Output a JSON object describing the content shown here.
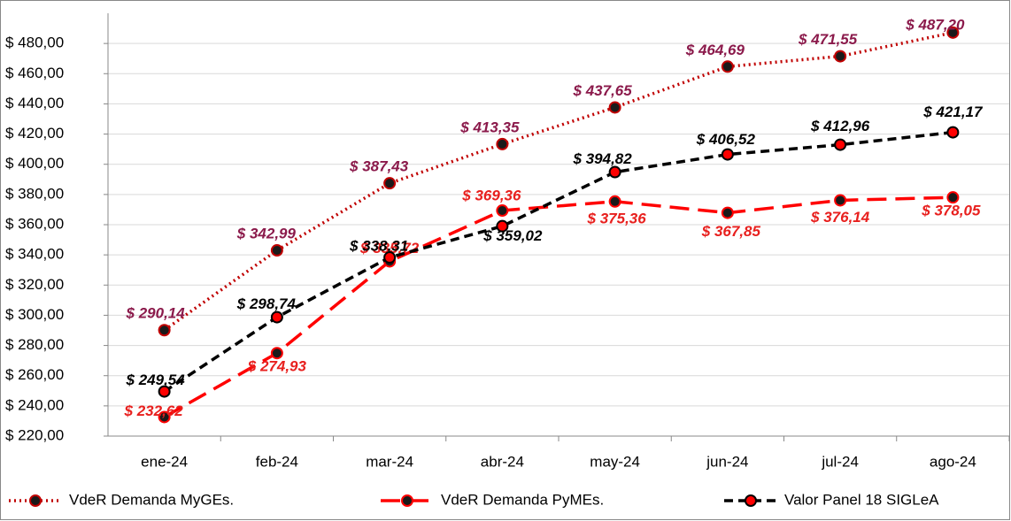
{
  "chart_data": {
    "type": "line",
    "categories": [
      "ene-24",
      "feb-24",
      "mar-24",
      "abr-24",
      "may-24",
      "jun-24",
      "jul-24",
      "ago-24"
    ],
    "series": [
      {
        "name": "VdeR Demanda MyGEs.",
        "color": "#c00000",
        "marker_fill": "#1a1a1a",
        "label_color": "#8b1a4b",
        "dash": "dotted",
        "values": [
          290.14,
          342.99,
          387.43,
          413.35,
          437.65,
          464.69,
          471.55,
          487.2
        ],
        "value_labels": [
          "$ 290,14",
          "$ 342,99",
          "$ 387,43",
          "$ 413,35",
          "$ 437,65",
          "$ 464,69",
          "$ 471,55",
          "$ 487,20"
        ]
      },
      {
        "name": "VdeR Demanda PyMEs.",
        "color": "#ff0000",
        "marker_fill": "#1a1a1a",
        "label_color": "#e8201e",
        "dash": "long",
        "values": [
          232.62,
          274.93,
          335.72,
          369.36,
          375.36,
          367.85,
          376.14,
          378.05
        ],
        "value_labels": [
          "$ 232,62",
          "$ 274,93",
          "$ 335,72",
          "$ 369,36",
          "$ 375,36",
          "$ 367,85",
          "$ 376,14",
          "$ 378,05"
        ]
      },
      {
        "name": "Valor Panel 18 SIGLeA",
        "color": "#000000",
        "marker_fill": "#ff0000",
        "label_color": "#000000",
        "dash": "short",
        "values": [
          249.54,
          298.74,
          338.31,
          359.02,
          394.82,
          406.52,
          412.96,
          421.17
        ],
        "value_labels": [
          "$ 249,54",
          "$ 298,74",
          "$ 338,31",
          "$ 359,02",
          "$ 394,82",
          "$ 406,52",
          "$ 412,96",
          "$ 421,17"
        ]
      }
    ],
    "ylim": [
      220,
      500
    ],
    "yticks": [
      {
        "value": 220,
        "label": "$ 220,00"
      },
      {
        "value": 240,
        "label": "$ 240,00"
      },
      {
        "value": 260,
        "label": "$ 260,00"
      },
      {
        "value": 280,
        "label": "$ 280,00"
      },
      {
        "value": 300,
        "label": "$ 300,00"
      },
      {
        "value": 320,
        "label": "$ 320,00"
      },
      {
        "value": 340,
        "label": "$ 340,00"
      },
      {
        "value": 360,
        "label": "$ 360,00"
      },
      {
        "value": 380,
        "label": "$ 380,00"
      },
      {
        "value": 400,
        "label": "$ 400,00"
      },
      {
        "value": 420,
        "label": "$ 420,00"
      },
      {
        "value": 440,
        "label": "$ 440,00"
      },
      {
        "value": 460,
        "label": "$ 460,00"
      },
      {
        "value": 480,
        "label": "$ 480,00"
      }
    ],
    "grid": true,
    "legend": "bottom"
  }
}
